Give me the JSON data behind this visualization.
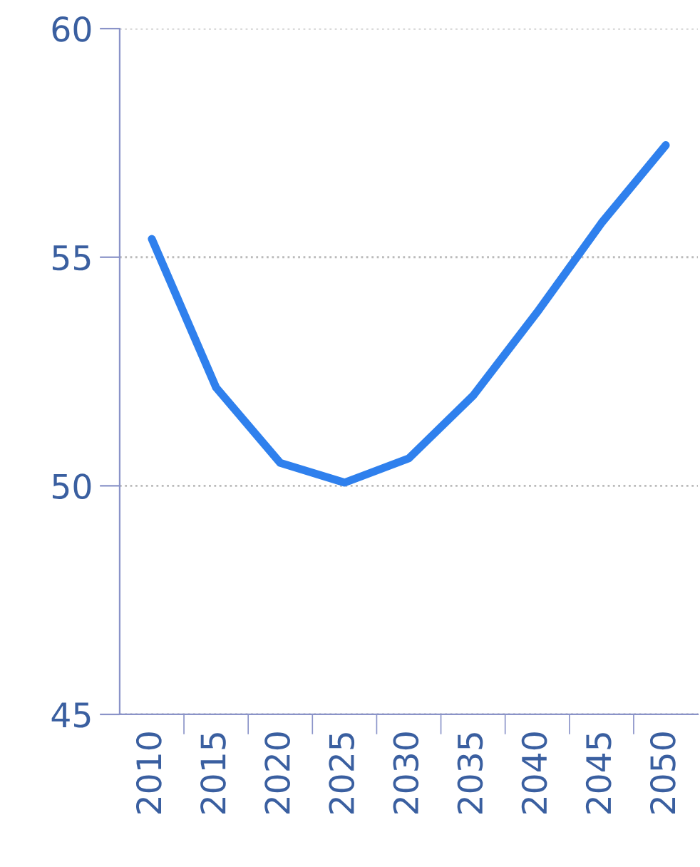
{
  "chart_data": {
    "type": "line",
    "categories": [
      "2010",
      "2015",
      "2020",
      "2025",
      "2030",
      "2035",
      "2040",
      "2045",
      "2050"
    ],
    "series": [
      {
        "color": "#2f80ed",
        "values": [
          55.4,
          52.15,
          50.5,
          50.07,
          50.6,
          51.97,
          53.8,
          55.75,
          57.45
        ]
      }
    ],
    "ylim": [
      45,
      60
    ],
    "yticks": [
      45,
      50,
      55,
      60
    ],
    "grid": "y",
    "marker": "none",
    "line_style": "solid"
  }
}
